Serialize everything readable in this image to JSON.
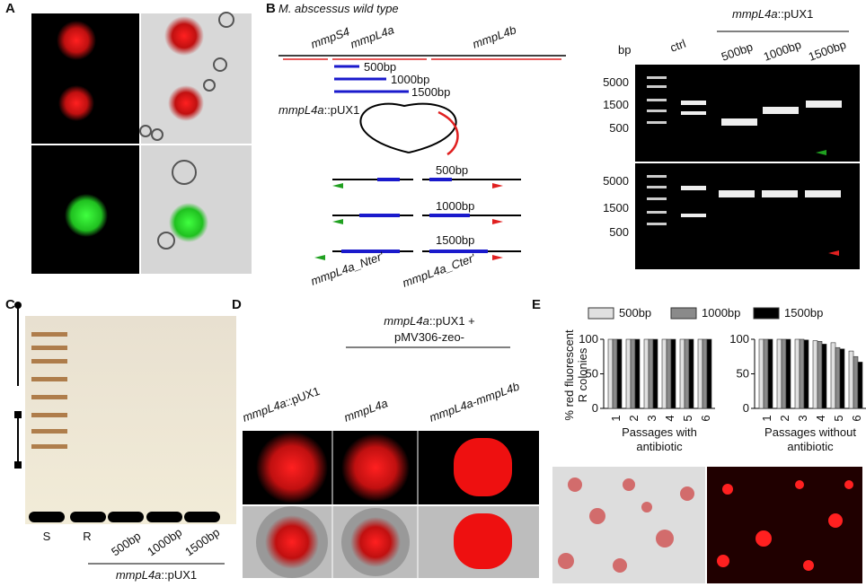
{
  "panel_labels": [
    "A",
    "B",
    "C",
    "D",
    "E"
  ],
  "panel_b": {
    "strain": "M. abscessus wild type",
    "genes": [
      "mmpS4",
      "mmpL4a",
      "mmpL4b"
    ],
    "fragments": [
      "500bp",
      "1000bp",
      "1500bp"
    ],
    "construct": {
      "italic": "mmpL4a",
      "rest": "::pUX1"
    },
    "recomb_labels": [
      "500bp",
      "1000bp",
      "1500bp"
    ],
    "ends": [
      "mmpL4a_Nter'",
      "mmpL4a_Cter'"
    ]
  },
  "gel_b": {
    "unit": "bp",
    "group": {
      "italic": "mmpL4a",
      "rest": "::pUX1"
    },
    "lanes": [
      "ctrl",
      "500bp",
      "1000bp",
      "1500bp"
    ],
    "markers": [
      "5000",
      "1500",
      "500"
    ]
  },
  "panel_c": {
    "lanes": [
      "S",
      "R",
      "500bp",
      "1000bp",
      "1500bp"
    ],
    "group": {
      "italic": "mmpL4a",
      "rest": "::pUX1"
    }
  },
  "panel_d": {
    "group": {
      "italic": "mmpL4a",
      "rest": "::pUX1 +"
    },
    "group2": "pMV306-zeo-",
    "columns": [
      {
        "italic": "mmpL4a",
        "rest": "::pUX1"
      },
      {
        "italic": "mmpL4a",
        "rest": ""
      },
      {
        "italic": "mmpL4a-mmpL4b",
        "rest": ""
      }
    ]
  },
  "panel_e": {
    "y_label": [
      "% red fluorescent",
      "R colonies"
    ],
    "ylim": [
      0,
      100
    ],
    "yticks": [
      0,
      50,
      100
    ],
    "series": [
      {
        "name": "500bp",
        "color": "#e0e0e0"
      },
      {
        "name": "1000bp",
        "color": "#8a8a8a"
      },
      {
        "name": "1500bp",
        "color": "#000000"
      }
    ],
    "charts": [
      {
        "x_label": [
          "Passages with",
          "antibiotic"
        ],
        "categories": [
          "1",
          "2",
          "3",
          "4",
          "5",
          "6"
        ],
        "values": [
          [
            100,
            100,
            100,
            100,
            100,
            100
          ],
          [
            100,
            100,
            100,
            100,
            100,
            100
          ],
          [
            100,
            100,
            100,
            100,
            100,
            100
          ]
        ]
      },
      {
        "x_label": [
          "Passages without",
          "antibiotic"
        ],
        "categories": [
          "1",
          "2",
          "3",
          "4",
          "5",
          "6"
        ],
        "values": [
          [
            100,
            100,
            100,
            98,
            95,
            83
          ],
          [
            100,
            100,
            100,
            97,
            88,
            75
          ],
          [
            100,
            100,
            99,
            93,
            86,
            67
          ]
        ]
      }
    ]
  }
}
